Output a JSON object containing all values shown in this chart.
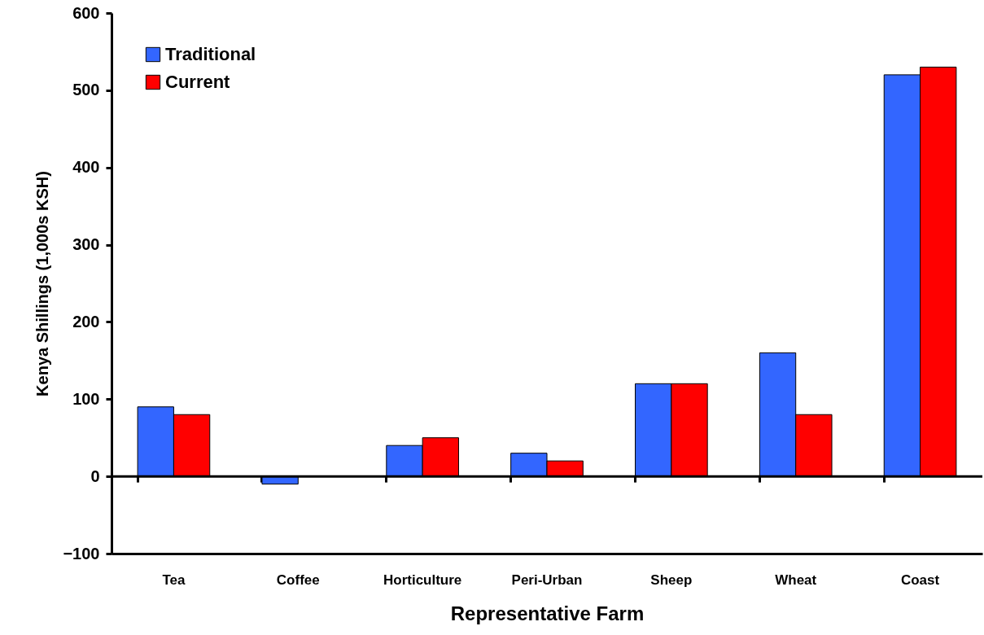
{
  "chart_data": {
    "type": "bar",
    "xlabel": "Representative Farm",
    "ylabel": "Kenya Shillings (1,000s KSH)",
    "categories": [
      "Tea",
      "Coffee",
      "Horticulture",
      "Peri-Urban",
      "Sheep",
      "Wheat",
      "Coast"
    ],
    "series": [
      {
        "name": "Traditional",
        "color": "#3366ff",
        "values": [
          90,
          -10,
          40,
          30,
          120,
          160,
          520
        ]
      },
      {
        "name": "Current",
        "color": "#ff0000",
        "values": [
          80,
          null,
          50,
          20,
          120,
          80,
          530
        ]
      }
    ],
    "ylim": [
      -100,
      600
    ],
    "yticks": [
      -100,
      0,
      100,
      200,
      300,
      400,
      500,
      600
    ],
    "ref_lines": [
      {
        "axis": "y",
        "value": 0,
        "color": "#000000"
      }
    ],
    "grid": false,
    "legend": "top left"
  }
}
